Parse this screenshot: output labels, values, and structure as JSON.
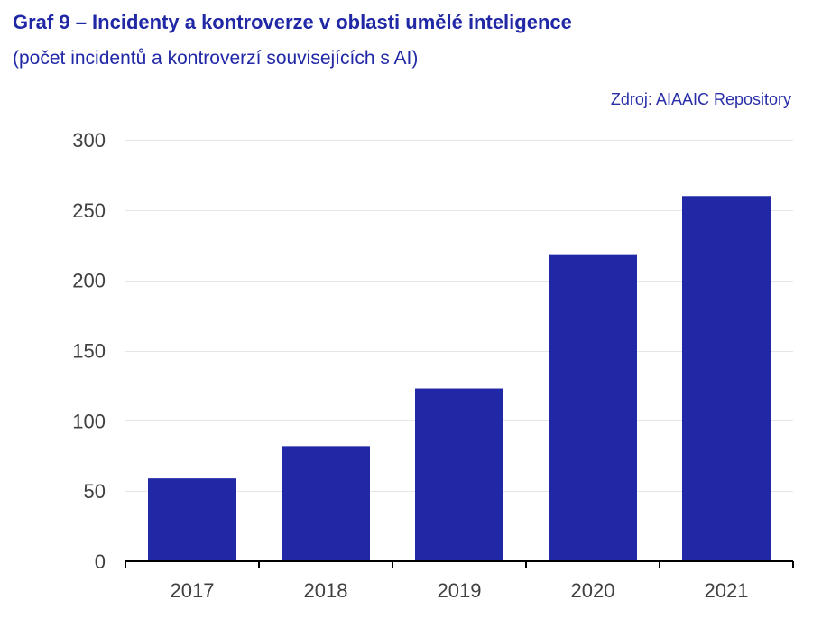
{
  "header": {
    "title": "Graf 9 – Incidenty a kontroverze v oblasti umělé inteligence",
    "subtitle": "(počet incidentů a kontroverzí souvisejících s AI)",
    "source": "Zdroj: AIAAIC Repository"
  },
  "colors": {
    "bar": "#2128a6",
    "title": "#2128a6",
    "grid": "#e6e6e6",
    "axis": "#000000",
    "tick_text": "#404040"
  },
  "chart_data": {
    "type": "bar",
    "title": "Graf 9 – Incidenty a kontroverze v oblasti umělé inteligence",
    "subtitle": "(počet incidentů a kontroverzí souvisejících s AI)",
    "categories": [
      "2017",
      "2018",
      "2019",
      "2020",
      "2021"
    ],
    "values": [
      59,
      82,
      123,
      218,
      260
    ],
    "xlabel": "",
    "ylabel": "",
    "ylim": [
      0,
      300
    ],
    "yticks": [
      0,
      50,
      100,
      150,
      200,
      250,
      300
    ],
    "grid": true,
    "legend": "none"
  }
}
